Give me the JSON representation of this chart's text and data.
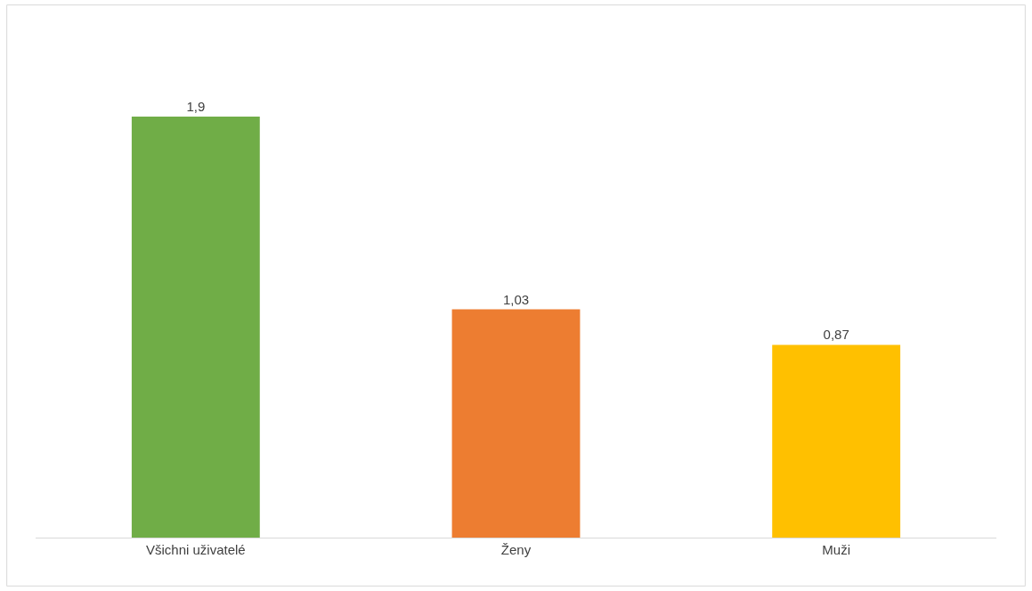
{
  "chart_data": {
    "type": "bar",
    "categories": [
      "Všichni uživatelé",
      "Ženy",
      "Muži"
    ],
    "values": [
      1.9,
      1.03,
      0.87
    ],
    "value_labels": [
      "1,9",
      "1,03",
      "0,87"
    ],
    "colors": [
      "#70ad47",
      "#ed7d31",
      "#ffc000"
    ],
    "tick_labels": "x"
  }
}
